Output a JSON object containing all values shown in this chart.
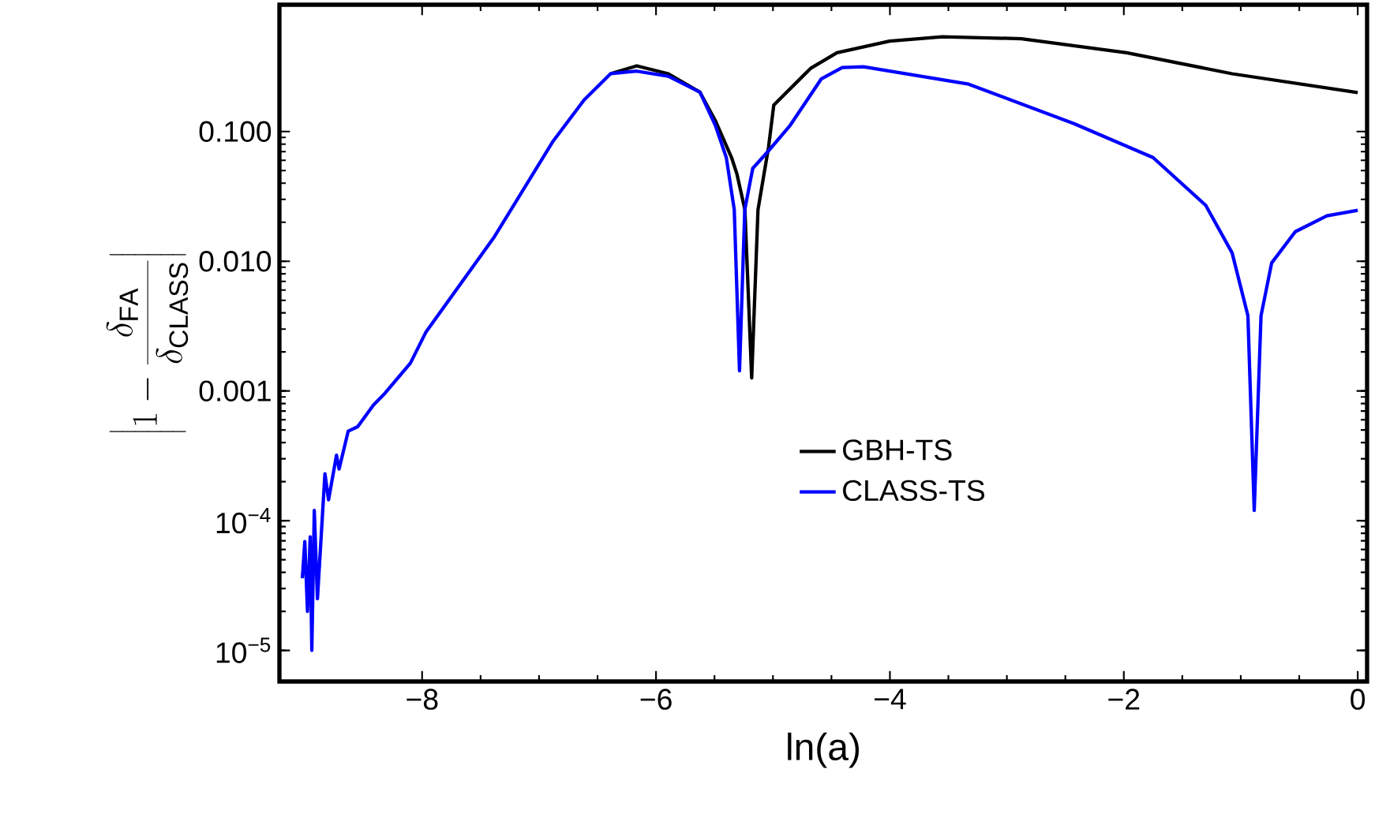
{
  "chart_data": {
    "type": "line",
    "xlabel": "ln(a)",
    "ylabel": "\\left|1-\\frac{\\delta_{\\mathrm{FA}}}{\\delta_{\\mathrm{CLASS}}}\\right|",
    "log": "y",
    "xlim": [
      -9.22,
      0.08
    ],
    "ylim": [
      5.76e-06,
      0.95
    ],
    "xticks": [
      {
        "value": -8,
        "label": "−8"
      },
      {
        "value": -6,
        "label": "−6"
      },
      {
        "value": -4,
        "label": "−4"
      },
      {
        "value": -2,
        "label": "−2"
      },
      0
    ],
    "yticks": [
      {
        "value": 1e-05,
        "label": "10$^{−5}$"
      },
      {
        "value": 0.0001,
        "label": "10$^{−4}$"
      },
      0.001,
      {
        "value": 0.01,
        "label": "0.010"
      },
      {
        "value": 0.1,
        "label": "0.100"
      }
    ],
    "legend": "center",
    "line_style": "solid",
    "marker": "none",
    "series": [
      {
        "name": "GBH-TS",
        "color": "#000000",
        "x": [
          -6.389,
          -6.165,
          -5.895,
          -5.624,
          -5.49,
          -5.354,
          -5.308,
          -5.24,
          -5.182,
          -5.128,
          -5.038,
          -4.993,
          -4.678,
          -4.453,
          -4.003,
          -3.551,
          -2.876,
          -1.976,
          -1.074,
          0.0
        ],
        "values": [
          0.279,
          0.321,
          0.279,
          0.201,
          0.12,
          0.063,
          0.047,
          0.025,
          0.00126,
          0.025,
          0.0755,
          0.16,
          0.307,
          0.405,
          0.498,
          0.537,
          0.52,
          0.405,
          0.279,
          0.2
        ]
      },
      {
        "name": "CLASS-TS",
        "color": "#0000ff",
        "x": [
          -9.024,
          -9.003,
          -8.98,
          -8.957,
          -8.943,
          -8.922,
          -8.895,
          -8.831,
          -8.8,
          -8.732,
          -8.71,
          -8.632,
          -8.551,
          -8.416,
          -8.327,
          -8.1,
          -7.966,
          -7.381,
          -6.885,
          -6.615,
          -6.389,
          -6.165,
          -5.895,
          -5.624,
          -5.49,
          -5.399,
          -5.331,
          -5.286,
          -5.241,
          -5.173,
          -5.044,
          -4.858,
          -4.588,
          -4.408,
          -4.227,
          -3.327,
          -2.426,
          -1.75,
          -1.3,
          -1.074,
          -0.939,
          -0.885,
          -0.827,
          -0.736,
          -0.534,
          -0.264,
          0.0
        ],
        "values": [
          3.6e-05,
          6.9e-05,
          2e-05,
          7.5e-05,
          1e-05,
          0.00012,
          2.5e-05,
          0.00023,
          0.000145,
          0.00032,
          0.00025,
          0.00049,
          0.00053,
          0.00078,
          0.00094,
          0.00164,
          0.00286,
          0.0155,
          0.083,
          0.175,
          0.279,
          0.292,
          0.267,
          0.201,
          0.11,
          0.063,
          0.025,
          0.00143,
          0.025,
          0.052,
          0.07,
          0.11,
          0.254,
          0.312,
          0.316,
          0.232,
          0.115,
          0.063,
          0.027,
          0.0116,
          0.0038,
          0.00012,
          0.0038,
          0.0097,
          0.0169,
          0.0224,
          0.0247
        ]
      }
    ]
  }
}
